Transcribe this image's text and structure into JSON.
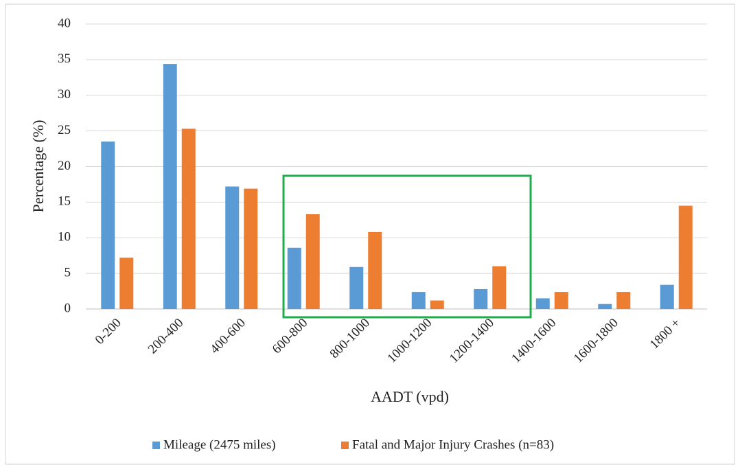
{
  "chart_data": {
    "type": "bar",
    "xlabel": "AADT  (vpd)",
    "ylabel": "Percentage  (%)",
    "categories": [
      "0-200",
      "200-400",
      "400-600",
      "600-800",
      "800-1000",
      "1000-1200",
      "1200-1400",
      "1400-1600",
      "1600-1800",
      "1800 +"
    ],
    "series": [
      {
        "name": "Mileage (2475 miles)",
        "color": "#5b9bd5",
        "values": [
          23.5,
          34.4,
          17.2,
          8.6,
          5.9,
          2.4,
          2.8,
          1.5,
          0.7,
          3.4
        ]
      },
      {
        "name": "Fatal and Major Injury Crashes (n=83)",
        "color": "#ed7d31",
        "values": [
          7.2,
          25.3,
          16.9,
          13.3,
          10.8,
          1.2,
          6.0,
          2.4,
          2.4,
          14.5
        ]
      }
    ],
    "ylim": [
      0,
      40
    ],
    "yticks": [
      0,
      5,
      10,
      15,
      20,
      25,
      30,
      35,
      40
    ],
    "grid": true
  }
}
